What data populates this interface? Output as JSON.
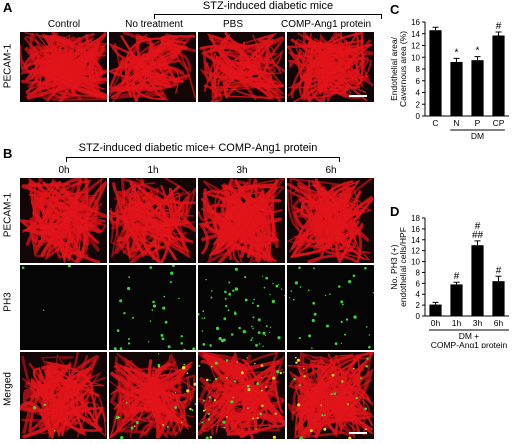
{
  "panel_a": {
    "label": "A",
    "group_title": "STZ-induced diabetic mice",
    "row_label": "PECAM-1",
    "columns": [
      "Control",
      "No treatment",
      "PBS",
      "COMP-Ang1 protein"
    ]
  },
  "panel_b": {
    "label": "B",
    "group_title": "STZ-induced diabetic mice+ COMP-Ang1 protein",
    "columns": [
      "0h",
      "1h",
      "3h",
      "6h"
    ],
    "rows": [
      "PECAM-1",
      "PH3",
      "Merged"
    ]
  },
  "panel_c": {
    "label": "C"
  },
  "panel_d": {
    "label": "D"
  },
  "colors": {
    "pecam": "#e0141a",
    "ph3": "#3ad43a",
    "bar": "#000000"
  },
  "chart_data": [
    {
      "type": "bar",
      "panel": "C",
      "categories": [
        "C",
        "N",
        "P",
        "CP"
      ],
      "values": [
        14.6,
        9.2,
        9.5,
        13.7
      ],
      "errors": [
        0.5,
        0.6,
        0.6,
        0.6
      ],
      "significance": [
        "",
        "*",
        "*",
        "#"
      ],
      "ylabel": "Endothelial area/ Cavernous area (%)",
      "ylim": [
        0,
        16
      ],
      "yticks": [
        0,
        2,
        4,
        6,
        8,
        10,
        12,
        14,
        16
      ],
      "group_label": "DM"
    },
    {
      "type": "bar",
      "panel": "D",
      "categories": [
        "0h",
        "1h",
        "3h",
        "6h"
      ],
      "values": [
        2.1,
        5.8,
        13.0,
        6.4
      ],
      "errors": [
        0.4,
        0.4,
        0.8,
        0.9
      ],
      "significance": [
        "",
        "#",
        "#\n##",
        "#"
      ],
      "ylabel": "No. PH3 (+) endothelial cells/HPF",
      "ylim": [
        0,
        18
      ],
      "yticks": [
        0,
        2,
        4,
        6,
        8,
        10,
        12,
        14,
        16,
        18
      ],
      "xlabel": "DM + COMP-Ang1 protein"
    }
  ]
}
